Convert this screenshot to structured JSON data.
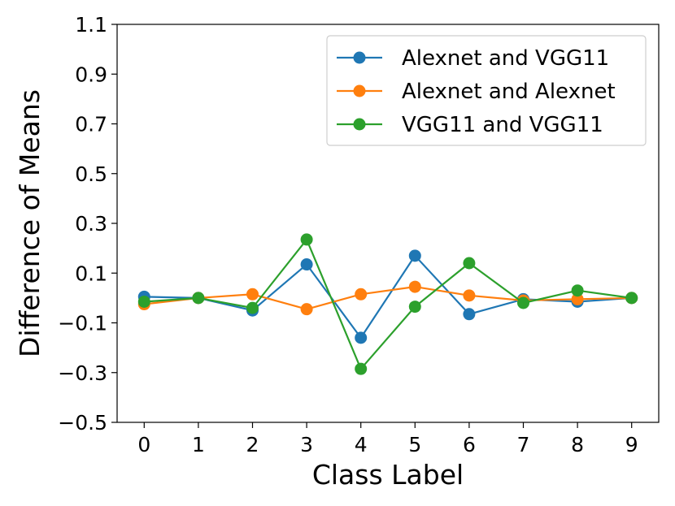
{
  "chart_data": {
    "type": "line",
    "title": "",
    "xlabel": "Class Label",
    "ylabel": "Difference of Means",
    "x": [
      0,
      1,
      2,
      3,
      4,
      5,
      6,
      7,
      8,
      9
    ],
    "xticks": [
      "0",
      "1",
      "2",
      "3",
      "4",
      "5",
      "6",
      "7",
      "8",
      "9"
    ],
    "yticks": [
      "1.1",
      "0.9",
      "0.7",
      "0.5",
      "0.3",
      "0.1",
      "−0.1",
      "−0.3",
      "−0.5"
    ],
    "ytick_values": [
      1.1,
      0.9,
      0.7,
      0.5,
      0.3,
      0.1,
      -0.1,
      -0.3,
      -0.5
    ],
    "xlim": [
      -0.5,
      9.5
    ],
    "ylim": [
      -0.5,
      1.1
    ],
    "grid": false,
    "legend_position": "top-right",
    "series": [
      {
        "name": "Alexnet and VGG11",
        "color": "#1f77b4",
        "values": [
          0.005,
          0.0,
          -0.05,
          0.135,
          -0.16,
          0.17,
          -0.065,
          -0.005,
          -0.015,
          0.0
        ]
      },
      {
        "name": "Alexnet and Alexnet",
        "color": "#ff7f0e",
        "values": [
          -0.025,
          0.0,
          0.015,
          -0.045,
          0.015,
          0.045,
          0.01,
          -0.01,
          -0.005,
          0.0
        ]
      },
      {
        "name": "VGG11 and VGG11",
        "color": "#2ca02c",
        "values": [
          -0.015,
          0.0,
          -0.04,
          0.235,
          -0.285,
          -0.035,
          0.14,
          -0.02,
          0.03,
          0.0
        ]
      }
    ]
  }
}
